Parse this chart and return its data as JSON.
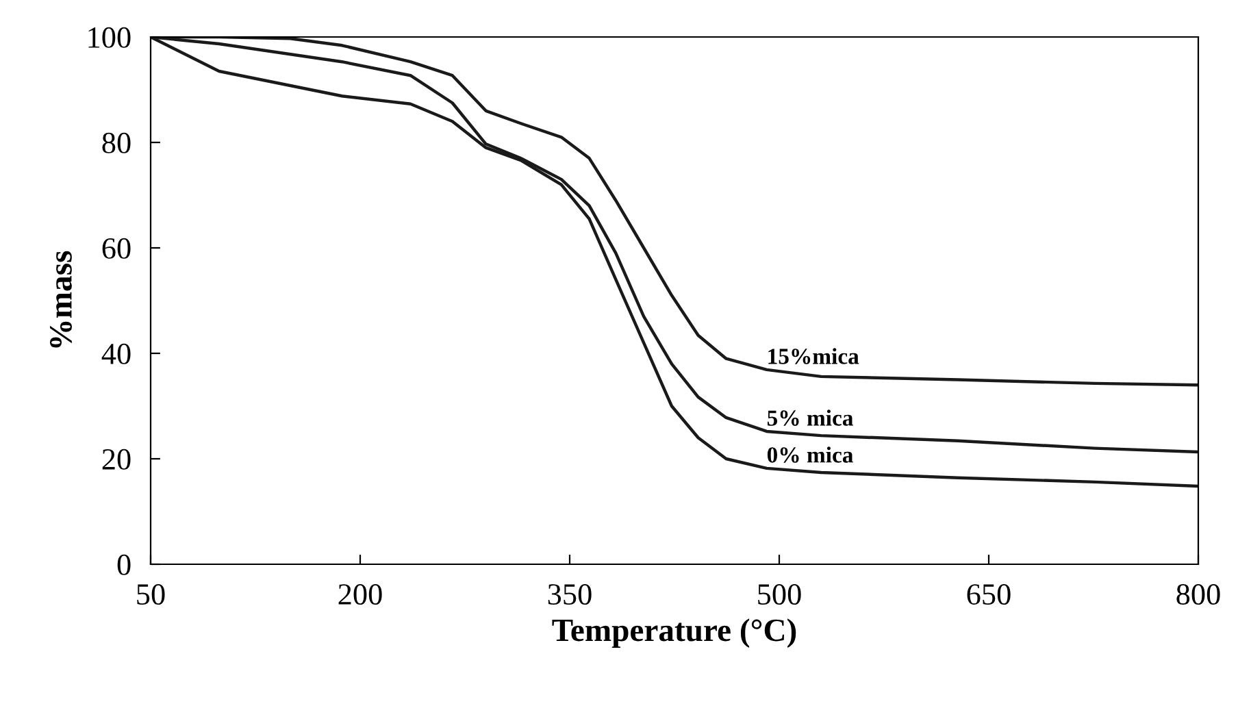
{
  "chart_data": {
    "type": "line",
    "xlabel": "Temperature (°C)",
    "ylabel": "%mass",
    "xlim": [
      50,
      800
    ],
    "xticks": [
      50,
      200,
      350,
      500,
      650,
      800
    ],
    "ylim": [
      0,
      100
    ],
    "yticks": [
      0,
      20,
      40,
      60,
      80,
      100
    ],
    "grid": false,
    "legend": false,
    "line_style": "solid",
    "series": [
      {
        "name": "15%mica",
        "color": "#1a1a1a",
        "x": [
          50,
          99,
          150,
          187,
          236,
          266,
          290,
          315,
          344,
          364,
          383,
          403,
          423,
          442,
          462,
          491,
          530,
          628,
          726,
          800
        ],
        "values": [
          100,
          100,
          99.7,
          98.4,
          95.3,
          92.7,
          86,
          83.6,
          81,
          77,
          69,
          60,
          51,
          43.4,
          39,
          36.9,
          35.6,
          35,
          34.3,
          34
        ]
      },
      {
        "name": "5% mica",
        "color": "#1a1a1a",
        "x": [
          50,
          99,
          187,
          236,
          266,
          290,
          315,
          344,
          364,
          383,
          403,
          423,
          442,
          462,
          491,
          530,
          628,
          726,
          800
        ],
        "values": [
          100,
          98.7,
          95.3,
          92.7,
          87.5,
          79.7,
          77,
          73,
          68,
          59,
          47,
          38,
          31.7,
          27.8,
          25.2,
          24.4,
          23.4,
          22,
          21.3
        ]
      },
      {
        "name": "0% mica",
        "color": "#1a1a1a",
        "x": [
          50,
          99,
          187,
          236,
          266,
          290,
          315,
          344,
          364,
          383,
          403,
          423,
          442,
          462,
          491,
          530,
          628,
          726,
          800
        ],
        "values": [
          100,
          93.5,
          88.8,
          87.3,
          84,
          79,
          76.6,
          72,
          65.5,
          54,
          42,
          30,
          24,
          20,
          18.2,
          17.4,
          16.4,
          15.6,
          14.8
        ]
      }
    ]
  }
}
